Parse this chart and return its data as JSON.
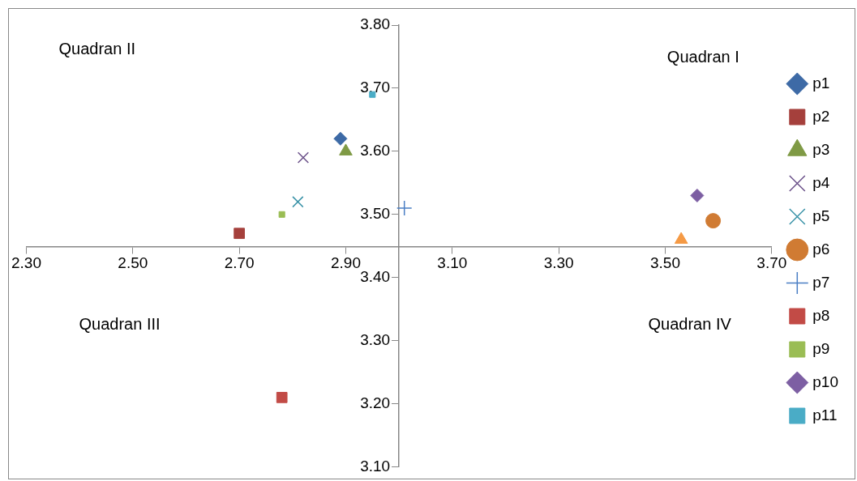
{
  "chart_data": {
    "type": "scatter",
    "annotations": [
      "Quadran II",
      "Quadran I",
      "Quadran III",
      "Quadran IV"
    ],
    "xlim": [
      2.3,
      3.7
    ],
    "xticks": [
      {
        "value": 2.3,
        "label": "2.30"
      },
      {
        "value": 2.5,
        "label": "2.50"
      },
      {
        "value": 2.7,
        "label": "2.70"
      },
      {
        "value": 2.9,
        "label": "2.90"
      },
      {
        "value": 3.1,
        "label": "3.10"
      },
      {
        "value": 3.3,
        "label": "3.30"
      },
      {
        "value": 3.5,
        "label": "3.50"
      },
      {
        "value": 3.7,
        "label": "3.70"
      }
    ],
    "ylim": [
      3.1,
      3.8
    ],
    "yticks": [
      {
        "value": 3.1,
        "label": "3.10"
      },
      {
        "value": 3.2,
        "label": "3.20"
      },
      {
        "value": 3.3,
        "label": "3.30"
      },
      {
        "value": 3.4,
        "label": "3.40"
      },
      {
        "value": 3.5,
        "label": "3.50"
      },
      {
        "value": 3.6,
        "label": "3.60"
      },
      {
        "value": 3.7,
        "label": "3.70"
      },
      {
        "value": 3.8,
        "label": "3.80"
      }
    ],
    "grid": false,
    "legend": "right",
    "series": [
      {
        "name": "p1",
        "color": "#3d6aa6",
        "marker": "diamond",
        "x": [
          2.89
        ],
        "values": [
          3.62
        ]
      },
      {
        "name": "p2",
        "color": "#a5403c",
        "marker": "square",
        "x": [
          2.7
        ],
        "values": [
          3.47
        ]
      },
      {
        "name": "p3",
        "color": "#7f9a45",
        "marker": "triangle",
        "x": [
          2.9
        ],
        "values": [
          3.6
        ]
      },
      {
        "name": "p4",
        "color": "#6a5089",
        "marker": "cross",
        "x": [
          2.82
        ],
        "values": [
          3.59
        ]
      },
      {
        "name": "p5",
        "color": "#3a93a8",
        "marker": "cross",
        "x": [
          2.81
        ],
        "values": [
          3.52
        ]
      },
      {
        "name": "p6",
        "color": "#d07b33",
        "marker": "circle",
        "x": [
          3.59
        ],
        "values": [
          3.49
        ]
      },
      {
        "name": "p7",
        "color": "#4a7ec4",
        "marker": "plus",
        "x": [
          3.01
        ],
        "values": [
          3.51
        ]
      },
      {
        "name": "p8",
        "color": "#c24b46",
        "marker": "square",
        "x": [
          2.78
        ],
        "values": [
          3.21
        ]
      },
      {
        "name": "p9",
        "color": "#9abd54",
        "marker": "square",
        "x": [
          2.78
        ],
        "values": [
          3.5
        ]
      },
      {
        "name": "p10",
        "color": "#7d5fa3",
        "marker": "diamond",
        "x": [
          3.56
        ],
        "values": [
          3.53
        ]
      },
      {
        "name": "p11",
        "color": "#4aacc6",
        "marker": "square",
        "x": [
          2.95
        ],
        "values": [
          3.69
        ]
      },
      {
        "color": "#f59a45",
        "marker": "triangle",
        "x": [
          3.53
        ],
        "values": [
          3.46
        ]
      }
    ]
  }
}
